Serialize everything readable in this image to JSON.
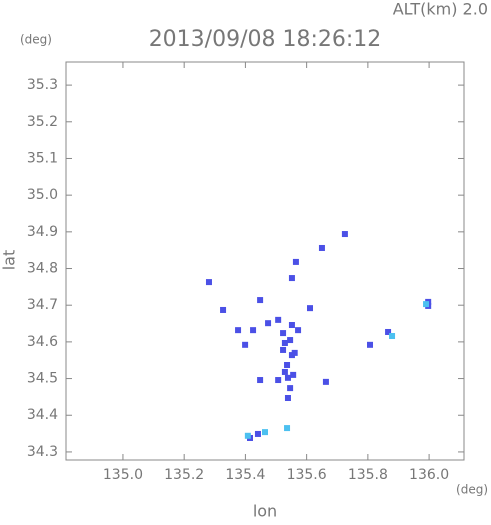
{
  "chart_data": {
    "type": "scatter",
    "title": "2013/09/08 18:26:12",
    "subtitle": "ALT(km) 2.0",
    "y_unit": "(deg)",
    "x_unit": "(deg)",
    "x_label": "lon",
    "y_label": "lat",
    "xlim": [
      134.814,
      136.114
    ],
    "ylim": [
      34.278,
      35.363
    ],
    "xticks": [
      {
        "value": 135.0,
        "label": "135.0"
      },
      135.2,
      135.4,
      135.6,
      135.8,
      {
        "value": 136.0,
        "label": "136.0"
      }
    ],
    "yticks": [
      34.3,
      34.4,
      34.5,
      34.6,
      34.7,
      34.8,
      34.9,
      {
        "value": 35.0,
        "label": "35.0"
      },
      35.1,
      35.2,
      35.3
    ],
    "series": [
      {
        "color": "#4b50e6",
        "x": [
          135.281,
          135.327,
          135.448,
          135.376,
          135.399,
          135.448,
          135.425,
          135.474,
          135.507,
          135.523,
          135.529,
          135.523,
          135.546,
          135.552,
          135.561,
          135.536,
          135.539,
          135.546,
          135.539,
          135.529,
          135.556,
          135.507,
          135.552,
          135.572,
          135.565,
          135.552,
          135.611,
          135.65,
          135.725,
          135.663,
          135.807,
          135.866,
          135.997,
          135.997,
          135.415,
          135.441
        ],
        "y": [
          34.763,
          34.687,
          34.714,
          34.632,
          34.592,
          34.496,
          34.632,
          34.651,
          34.66,
          34.624,
          34.597,
          34.578,
          34.605,
          34.564,
          34.57,
          34.537,
          34.502,
          34.474,
          34.447,
          34.518,
          34.51,
          34.496,
          34.646,
          34.632,
          34.818,
          34.774,
          34.692,
          34.856,
          34.894,
          34.491,
          34.592,
          34.627,
          34.709,
          34.698,
          34.338,
          34.349
        ]
      },
      {
        "color": "#4cc0f0",
        "x": [
          135.408,
          135.464,
          135.536,
          135.879,
          135.99
        ],
        "y": [
          34.344,
          34.354,
          34.365,
          34.616,
          34.703
        ]
      }
    ]
  }
}
